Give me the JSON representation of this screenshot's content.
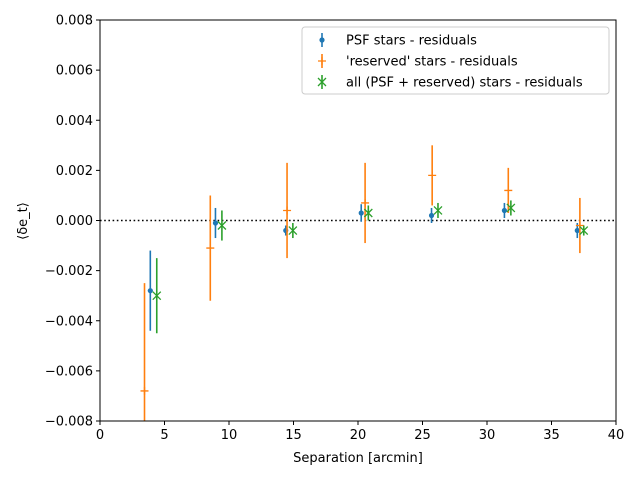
{
  "chart_data": {
    "type": "scatter",
    "xlabel": "Separation [arcmin]",
    "ylabel": "⟨δe_t⟩",
    "xlim": [
      0,
      40
    ],
    "ylim": [
      -0.008,
      0.008
    ],
    "x_ticks": [
      "0",
      "5",
      "10",
      "15",
      "20",
      "25",
      "30",
      "35",
      "40"
    ],
    "y_ticks": [
      "−0.008",
      "−0.006",
      "−0.004",
      "−0.002",
      "0.000",
      "0.002",
      "0.004",
      "0.006",
      "0.008"
    ],
    "grid": false,
    "zero_line": {
      "y": 0,
      "style": "dotted",
      "color": "#000000"
    },
    "legend_position": "top-right",
    "series": [
      {
        "name": "PSF stars - residuals",
        "marker": "dot",
        "color": "#1f77b4",
        "x": [
          3.9,
          8.95,
          14.4,
          20.25,
          25.7,
          31.35,
          37.0
        ],
        "y": [
          -0.0028,
          -0.0001,
          -0.0004,
          0.0003,
          0.0002,
          0.0004,
          -0.0004
        ],
        "err": [
          0.0016,
          0.0006,
          0.0002,
          0.00035,
          0.0003,
          0.0003,
          0.0003
        ]
      },
      {
        "name": "'reserved' stars - residuals",
        "marker": "plus",
        "color": "#ff7f0e",
        "x": [
          3.45,
          8.55,
          14.5,
          20.55,
          25.75,
          31.65,
          37.2
        ],
        "y": [
          -0.0068,
          -0.0011,
          0.0004,
          0.0007,
          0.0018,
          0.0012,
          -0.0002
        ],
        "err": [
          0.0043,
          0.0021,
          0.0019,
          0.0016,
          0.0012,
          0.0009,
          0.0011
        ]
      },
      {
        "name": "all (PSF + reserved) stars - residuals",
        "marker": "x",
        "color": "#2ca02c",
        "x": [
          4.4,
          9.45,
          14.95,
          20.8,
          26.2,
          31.85,
          37.5
        ],
        "y": [
          -0.003,
          -0.0002,
          -0.0004,
          0.0003,
          0.0004,
          0.0005,
          -0.0004
        ],
        "err": [
          0.0015,
          0.0006,
          0.0003,
          0.0003,
          0.0003,
          0.0003,
          0.0002
        ]
      }
    ]
  }
}
